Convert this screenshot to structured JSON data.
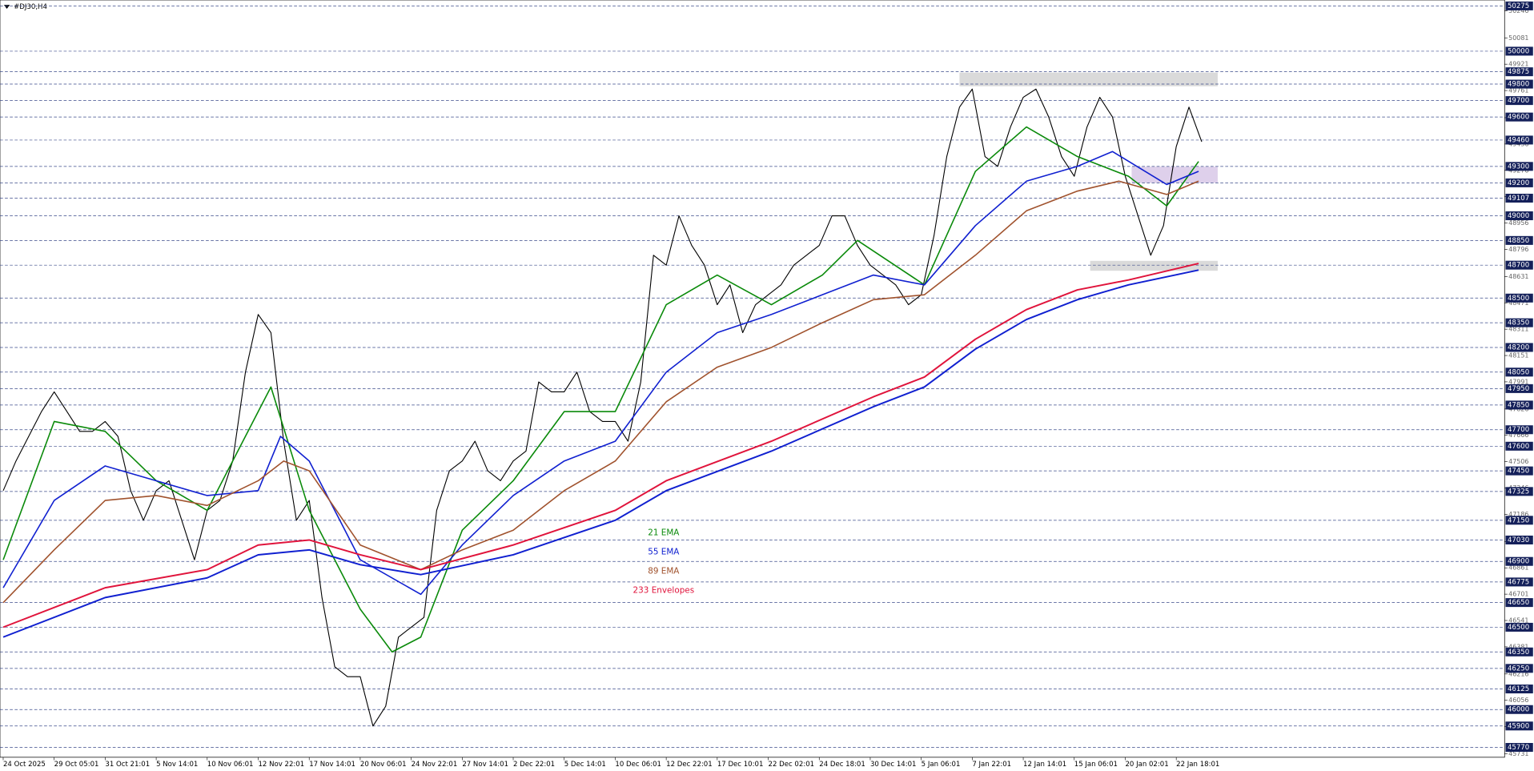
{
  "chart_data": {
    "type": "line",
    "title": "#DJ30,H4",
    "xlim": [
      -1,
      471
    ],
    "ylim": [
      45710,
      50311
    ],
    "xticks": [
      {
        "value": 0,
        "label": "24 Oct 2025"
      },
      {
        "value": 16,
        "label": "29 Oct 05:01"
      },
      {
        "value": 32,
        "label": "31 Oct 21:01"
      },
      {
        "value": 48,
        "label": "5 Nov 14:01"
      },
      {
        "value": 64,
        "label": "10 Nov 06:01"
      },
      {
        "value": 80,
        "label": "12 Nov 22:01"
      },
      {
        "value": 96,
        "label": "17 Nov 14:01"
      },
      {
        "value": 112,
        "label": "20 Nov 06:01"
      },
      {
        "value": 128,
        "label": "24 Nov 22:01"
      },
      {
        "value": 144,
        "label": "27 Nov 14:01"
      },
      {
        "value": 160,
        "label": "2 Dec 22:01"
      },
      {
        "value": 176,
        "label": "5 Dec 14:01"
      },
      {
        "value": 192,
        "label": "10 Dec 06:01"
      },
      {
        "value": 208,
        "label": "12 Dec 22:01"
      },
      {
        "value": 224,
        "label": "17 Dec 10:01"
      },
      {
        "value": 240,
        "label": "22 Dec 02:01"
      },
      {
        "value": 256,
        "label": "24 Dec 18:01"
      },
      {
        "value": 272,
        "label": "30 Dec 14:01"
      },
      {
        "value": 288,
        "label": "5 Jan 06:01"
      },
      {
        "value": 304,
        "label": "7 Jan 22:01"
      },
      {
        "value": 320,
        "label": "12 Jan 14:01"
      },
      {
        "value": 336,
        "label": "15 Jan 06:01"
      },
      {
        "value": 352,
        "label": "20 Jan 02:01"
      },
      {
        "value": 368,
        "label": "22 Jan 18:01"
      }
    ],
    "yticks": [
      50246,
      50081,
      49921,
      49761,
      49596,
      49436,
      49276,
      49116,
      48956,
      48796,
      48631,
      48471,
      48311,
      48151,
      47991,
      47826,
      47666,
      47506,
      47346,
      47186,
      47021,
      46861,
      46701,
      46541,
      46381,
      46216,
      46056,
      45896,
      45731
    ],
    "levels": [
      50275,
      50000,
      49875,
      49800,
      49700,
      49600,
      49460,
      49300,
      49200,
      49107,
      49000,
      48850,
      48700,
      48500,
      48350,
      48200,
      48050,
      47950,
      47850,
      47700,
      47600,
      47450,
      47325,
      47150,
      47030,
      46900,
      46775,
      46650,
      46500,
      46350,
      46250,
      46125,
      46000,
      45900,
      45770
    ],
    "zones": [
      {
        "color": "#d3d3d3",
        "start": 300,
        "end": 381,
        "from": 49787,
        "to": 49870
      },
      {
        "color": "#d8c8e8",
        "start": 354,
        "end": 381,
        "from": 49200,
        "to": 49298
      },
      {
        "color": "#d3d3d3",
        "start": 341,
        "end": 381,
        "from": 48666,
        "to": 48726
      }
    ],
    "price": {
      "color": "#000000",
      "x": [
        0,
        4,
        8,
        12,
        16,
        20,
        24,
        28,
        32,
        36,
        40,
        44,
        48,
        52,
        56,
        60,
        64,
        68,
        72,
        76,
        80,
        84,
        88,
        92,
        96,
        100,
        104,
        108,
        112,
        116,
        120,
        124,
        128,
        132,
        136,
        140,
        144,
        148,
        152,
        156,
        160,
        164,
        168,
        172,
        176,
        180,
        184,
        188,
        192,
        196,
        200,
        204,
        208,
        212,
        216,
        220,
        224,
        228,
        232,
        236,
        240,
        244,
        248,
        252,
        256,
        260,
        264,
        268,
        272,
        276,
        280,
        284,
        288,
        292,
        296,
        300,
        304,
        308,
        312,
        316,
        320,
        324,
        328,
        332,
        336,
        340,
        344,
        348,
        352,
        356,
        360,
        364,
        368,
        372,
        376
      ],
      "values": [
        47330,
        47510,
        47660,
        47810,
        47930,
        47810,
        47690,
        47690,
        47750,
        47660,
        47330,
        47150,
        47330,
        47390,
        47150,
        46910,
        47210,
        47270,
        47510,
        48050,
        48400,
        48290,
        47630,
        47150,
        47270,
        46680,
        46260,
        46200,
        46200,
        45900,
        46020,
        46440,
        46500,
        46560,
        47210,
        47450,
        47510,
        47630,
        47450,
        47390,
        47510,
        47570,
        47990,
        47930,
        47930,
        48050,
        47810,
        47750,
        47750,
        47630,
        47990,
        48760,
        48700,
        49000,
        48820,
        48700,
        48460,
        48580,
        48290,
        48460,
        48520,
        48580,
        48700,
        48760,
        48820,
        49000,
        49000,
        48820,
        48700,
        48640,
        48580,
        48460,
        48520,
        48880,
        49360,
        49660,
        49770,
        49360,
        49300,
        49540,
        49720,
        49770,
        49600,
        49360,
        49240,
        49540,
        49720,
        49600,
        49240,
        49000,
        48760,
        48940,
        49420,
        49660,
        49450
      ]
    },
    "series": [
      {
        "name": "21 EMA",
        "color": "#0a8a0a",
        "x": [
          0,
          16,
          32,
          48,
          64,
          80,
          84,
          96,
          112,
          122,
          131,
          144,
          160,
          176,
          192,
          208,
          224,
          241,
          257,
          268,
          289,
          305,
          321,
          337,
          353,
          365,
          375
        ],
        "values": [
          46910,
          47750,
          47690,
          47390,
          47210,
          47810,
          47960,
          47210,
          46610,
          46350,
          46440,
          47090,
          47390,
          47810,
          47810,
          48460,
          48640,
          48460,
          48640,
          48850,
          48580,
          49270,
          49540,
          49360,
          49240,
          49060,
          49330
        ]
      },
      {
        "name": "55 EMA",
        "color": "#1020d0",
        "x": [
          0,
          16,
          32,
          48,
          64,
          80,
          87,
          96,
          112,
          131,
          144,
          160,
          176,
          192,
          208,
          224,
          241,
          257,
          273,
          289,
          305,
          321,
          337,
          348,
          365,
          375
        ],
        "values": [
          46740,
          47270,
          47480,
          47390,
          47300,
          47330,
          47660,
          47510,
          46910,
          46700,
          47000,
          47300,
          47510,
          47630,
          48050,
          48290,
          48400,
          48520,
          48640,
          48580,
          48940,
          49210,
          49300,
          49390,
          49190,
          49270
        ]
      },
      {
        "name": "89 EMA",
        "color": "#a0522d",
        "x": [
          0,
          16,
          32,
          48,
          64,
          80,
          88,
          96,
          112,
          131,
          144,
          160,
          176,
          192,
          208,
          224,
          241,
          257,
          273,
          289,
          305,
          321,
          337,
          350,
          365,
          375
        ],
        "values": [
          46650,
          46970,
          47270,
          47300,
          47240,
          47390,
          47510,
          47450,
          47000,
          46850,
          46970,
          47090,
          47330,
          47510,
          47870,
          48080,
          48200,
          48350,
          48490,
          48520,
          48760,
          49030,
          49150,
          49210,
          49130,
          49210
        ]
      },
      {
        "name": "233 Envelopes",
        "color": "#e0143c",
        "x": [
          0,
          32,
          64,
          80,
          96,
          112,
          131,
          160,
          192,
          208,
          241,
          273,
          289,
          305,
          321,
          337,
          353,
          375
        ],
        "values": [
          46500,
          46740,
          46850,
          47000,
          47030,
          46940,
          46850,
          47000,
          47210,
          47390,
          47630,
          47900,
          48020,
          48250,
          48430,
          48550,
          48610,
          48710
        ],
        "lower": [
          46440,
          46680,
          46800,
          46940,
          46970,
          46880,
          46820,
          46940,
          47150,
          47330,
          47570,
          47840,
          47960,
          48190,
          48370,
          48490,
          48580,
          48670
        ],
        "lower_color": "#1020d0"
      }
    ]
  }
}
